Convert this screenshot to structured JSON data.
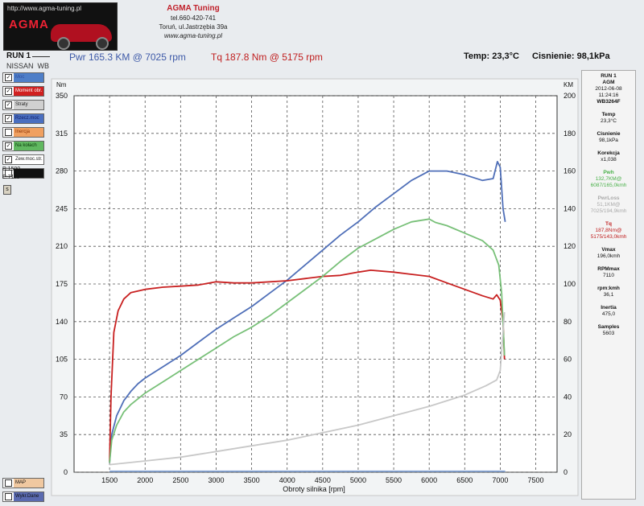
{
  "header": {
    "logo_url": "http://www.agma-tuning.pl",
    "logo_text": "AGMA",
    "company": "AGMA Tuning",
    "phone": "tel.660-420-741",
    "address": "Toruń, ul.Jastrzębia 39a",
    "url": "www.agma-tuning.pl",
    "run_label": "RUN 1",
    "vehicle_make": "NISSAN",
    "vehicle_code": "WB",
    "pwr": "Pwr 165.3 KM @ 7025 rpm",
    "tq": "Tq 187.8 Nm @ 5175 rpm",
    "temp": "Temp: 23,3°C",
    "pressure": "Cisnienie: 98,1kPa"
  },
  "legend": {
    "items": [
      {
        "label": "Moc",
        "checked": true,
        "color": "#4f7fc8",
        "text_color": "#3050a0"
      },
      {
        "label": "Moment obr.",
        "checked": true,
        "color": "#d02020",
        "text_color": "#ffffff"
      },
      {
        "label": "Straty",
        "checked": true,
        "color": "#d0d0d0",
        "text_color": "#222222"
      },
      {
        "label": "Rzecz.moc",
        "checked": true,
        "color": "#4a6fc0",
        "text_color": "#10206a"
      },
      {
        "label": "Inercja",
        "checked": false,
        "color": "#f0a060",
        "text_color": "#8a3000"
      },
      {
        "label": "Na kołach",
        "checked": true,
        "color": "#60b860",
        "text_color": "#0a3a0a"
      },
      {
        "label": "Zew.moc.str.",
        "checked": true,
        "color": "#ffffff",
        "text_color": "#222222"
      },
      {
        "label": "",
        "checked": false,
        "color": "#111111",
        "text_color": "#ffffff"
      }
    ],
    "b_value": "B:1500",
    "e_value": "E:7111",
    "s_button": "s",
    "bottom_items": [
      {
        "label": "MAP",
        "color": "#f0c8a0"
      },
      {
        "label": "Wykr.Dane",
        "color": "#5a6ab0"
      }
    ]
  },
  "panel": {
    "run": "RUN 1",
    "company": "AGM",
    "date": "2012-06-08",
    "time": "11:24:16",
    "vin": "WB3264F",
    "temp_label": "Temp",
    "temp_value": "23,3°C",
    "press_label": "Cisnienie",
    "press_value": "98,1kPa",
    "korekcja_label": "Korekcja",
    "korekcja_value": "x1,038",
    "pwh_label": "Pwh",
    "pwh_value": "132,7KM@",
    "pwh_sub": "6087/165,0kmh",
    "pwloss_label": "PwrLoss",
    "pwloss_value": "51,1KM@",
    "pwloss_sub": "7025/194,9kmh",
    "tq_label": "Tq",
    "tq_value": "187,8Nm@",
    "tq_sub": "5175/143,0kmh",
    "vmax_label": "Vmax",
    "vmax_value": "196,0kmh",
    "rpmmax_label": "RPMmax",
    "rpmmax_value": "7110",
    "rpmkmh_label": "rpm:kmh",
    "rpmkmh_value": "36,1",
    "inertia_label": "Inertia",
    "inertia_value": "475,0",
    "samples_label": "Samples",
    "samples_value": "5603"
  },
  "chart_data": {
    "type": "line",
    "xlabel": "Obroty silnika [rpm]",
    "ylabel_left": "Nm",
    "ylabel_right": "KM",
    "xlim": [
      1000,
      7800
    ],
    "ylim_left": [
      0,
      350
    ],
    "ylim_right": [
      0,
      200
    ],
    "x_ticks": [
      1500,
      2000,
      2500,
      3000,
      3500,
      4000,
      4500,
      5000,
      5500,
      6000,
      6500,
      7000,
      7500
    ],
    "y_ticks_left": [
      0,
      35,
      70,
      105,
      140,
      175,
      210,
      245,
      280,
      315,
      350
    ],
    "y_ticks_right": [
      0,
      20,
      40,
      60,
      80,
      100,
      120,
      140,
      160,
      180,
      200
    ],
    "grid": true,
    "series": [
      {
        "name": "Moc",
        "axis": "right",
        "color": "#4f6fb8",
        "points": [
          [
            1500,
            5
          ],
          [
            1530,
            20
          ],
          [
            1600,
            30
          ],
          [
            1700,
            38
          ],
          [
            1800,
            43
          ],
          [
            1900,
            47
          ],
          [
            2000,
            50
          ],
          [
            2250,
            56
          ],
          [
            2500,
            62
          ],
          [
            2750,
            69
          ],
          [
            3000,
            76
          ],
          [
            3250,
            82
          ],
          [
            3500,
            88
          ],
          [
            3750,
            95
          ],
          [
            4000,
            102
          ],
          [
            4250,
            110
          ],
          [
            4500,
            118
          ],
          [
            4750,
            126
          ],
          [
            5000,
            133
          ],
          [
            5250,
            141
          ],
          [
            5500,
            148
          ],
          [
            5750,
            155
          ],
          [
            6000,
            160
          ],
          [
            6250,
            160
          ],
          [
            6500,
            158
          ],
          [
            6750,
            155
          ],
          [
            6900,
            156
          ],
          [
            6960,
            165
          ],
          [
            7000,
            162
          ],
          [
            7040,
            140
          ],
          [
            7070,
            133
          ]
        ]
      },
      {
        "name": "Moment obr.",
        "axis": "left",
        "color": "#c82020",
        "points": [
          [
            1500,
            10
          ],
          [
            1520,
            70
          ],
          [
            1560,
            130
          ],
          [
            1620,
            150
          ],
          [
            1700,
            161
          ],
          [
            1800,
            167
          ],
          [
            2000,
            170
          ],
          [
            2250,
            172
          ],
          [
            2500,
            173
          ],
          [
            2750,
            174
          ],
          [
            3000,
            177
          ],
          [
            3250,
            176
          ],
          [
            3500,
            176
          ],
          [
            4000,
            178
          ],
          [
            4250,
            180
          ],
          [
            4500,
            182
          ],
          [
            4750,
            183
          ],
          [
            5000,
            186
          ],
          [
            5175,
            187.8
          ],
          [
            5500,
            186
          ],
          [
            5750,
            184
          ],
          [
            6000,
            182
          ],
          [
            6250,
            176
          ],
          [
            6500,
            170
          ],
          [
            6750,
            164
          ],
          [
            6900,
            161
          ],
          [
            6950,
            165
          ],
          [
            7000,
            160
          ],
          [
            7040,
            140
          ],
          [
            7060,
            105
          ]
        ]
      },
      {
        "name": "Na kołach",
        "axis": "right",
        "color": "#78c078",
        "points": [
          [
            1500,
            5
          ],
          [
            1530,
            17
          ],
          [
            1600,
            25
          ],
          [
            1700,
            32
          ],
          [
            1800,
            36
          ],
          [
            2000,
            42
          ],
          [
            2250,
            48
          ],
          [
            2500,
            54
          ],
          [
            2750,
            60
          ],
          [
            3000,
            66
          ],
          [
            3250,
            72
          ],
          [
            3500,
            77
          ],
          [
            3750,
            83
          ],
          [
            4000,
            90
          ],
          [
            4250,
            97
          ],
          [
            4500,
            104
          ],
          [
            4750,
            112
          ],
          [
            5000,
            119
          ],
          [
            5250,
            124
          ],
          [
            5500,
            129
          ],
          [
            5750,
            133
          ],
          [
            6000,
            134.5
          ],
          [
            6087,
            132.7
          ],
          [
            6250,
            131
          ],
          [
            6500,
            127
          ],
          [
            6750,
            123
          ],
          [
            6900,
            118
          ],
          [
            6980,
            110
          ],
          [
            7020,
            95
          ],
          [
            7060,
            62
          ]
        ]
      },
      {
        "name": "Straty",
        "axis": "right",
        "color": "#c8c8c8",
        "points": [
          [
            1500,
            4
          ],
          [
            2000,
            6
          ],
          [
            2500,
            8
          ],
          [
            3000,
            11
          ],
          [
            3500,
            14
          ],
          [
            4000,
            17
          ],
          [
            4500,
            21
          ],
          [
            5000,
            25
          ],
          [
            5500,
            30
          ],
          [
            6000,
            35
          ],
          [
            6500,
            41
          ],
          [
            6800,
            46
          ],
          [
            6950,
            49
          ],
          [
            7000,
            54
          ],
          [
            7030,
            70
          ],
          [
            7060,
            85
          ]
        ]
      },
      {
        "name": "Zew.moc.str.",
        "axis": "right",
        "color": "#8aa8d8",
        "points": [
          [
            1500,
            0.5
          ],
          [
            7070,
            0.5
          ]
        ]
      }
    ]
  }
}
